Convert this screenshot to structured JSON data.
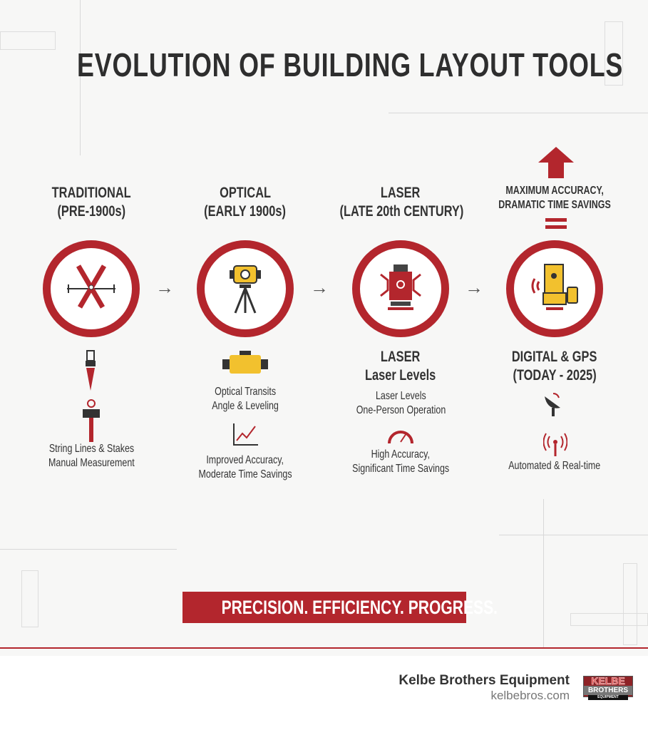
{
  "title": "EVOLUTION OF BUILDING LAYOUT TOOLS",
  "colors": {
    "accent": "#b3262d",
    "yellow": "#f2c12e",
    "dark": "#2b2b2b"
  },
  "stages": [
    {
      "header": "TRADITIONAL",
      "period": "(PRE-1900s)",
      "icon": "crossed-stakes-icon",
      "details": [
        "String Lines & Stakes",
        "Manual Measurement"
      ]
    },
    {
      "header": "OPTICAL",
      "period": "(EARLY 1900s)",
      "icon": "tripod-transit-icon",
      "details": [
        "Optical Transits",
        "Angle & Leveling"
      ],
      "outcome": [
        "Improved Accuracy,",
        "Moderate Time Savings"
      ]
    },
    {
      "header": "LASER",
      "period": "(LATE 20th CENTURY)",
      "icon": "laser-level-icon",
      "subheader": "LASER",
      "subtitle": "Laser Levels",
      "details": [
        "Laser Levels",
        "One-Person Operation"
      ],
      "outcome": [
        "High Accuracy,",
        "Significant Time Savings"
      ]
    },
    {
      "header": "MAXIMUM ACCURACY,",
      "period": "DRAMATIC TIME SAVINGS",
      "icon": "gps-total-station-icon",
      "subheader": "DIGITAL & GPS",
      "subtitle": "(TODAY - 2025)",
      "details": [
        "Automated & Real-time"
      ]
    }
  ],
  "arrow": "→",
  "tagline": "PRECISION. EFFICIENCY. PROGRESS.",
  "footer": {
    "company": "Kelbe Brothers Equipment",
    "url": "kelbebros.com",
    "logo_text": [
      "KELBE",
      "BROTHERS",
      "EQUIPMENT"
    ]
  }
}
